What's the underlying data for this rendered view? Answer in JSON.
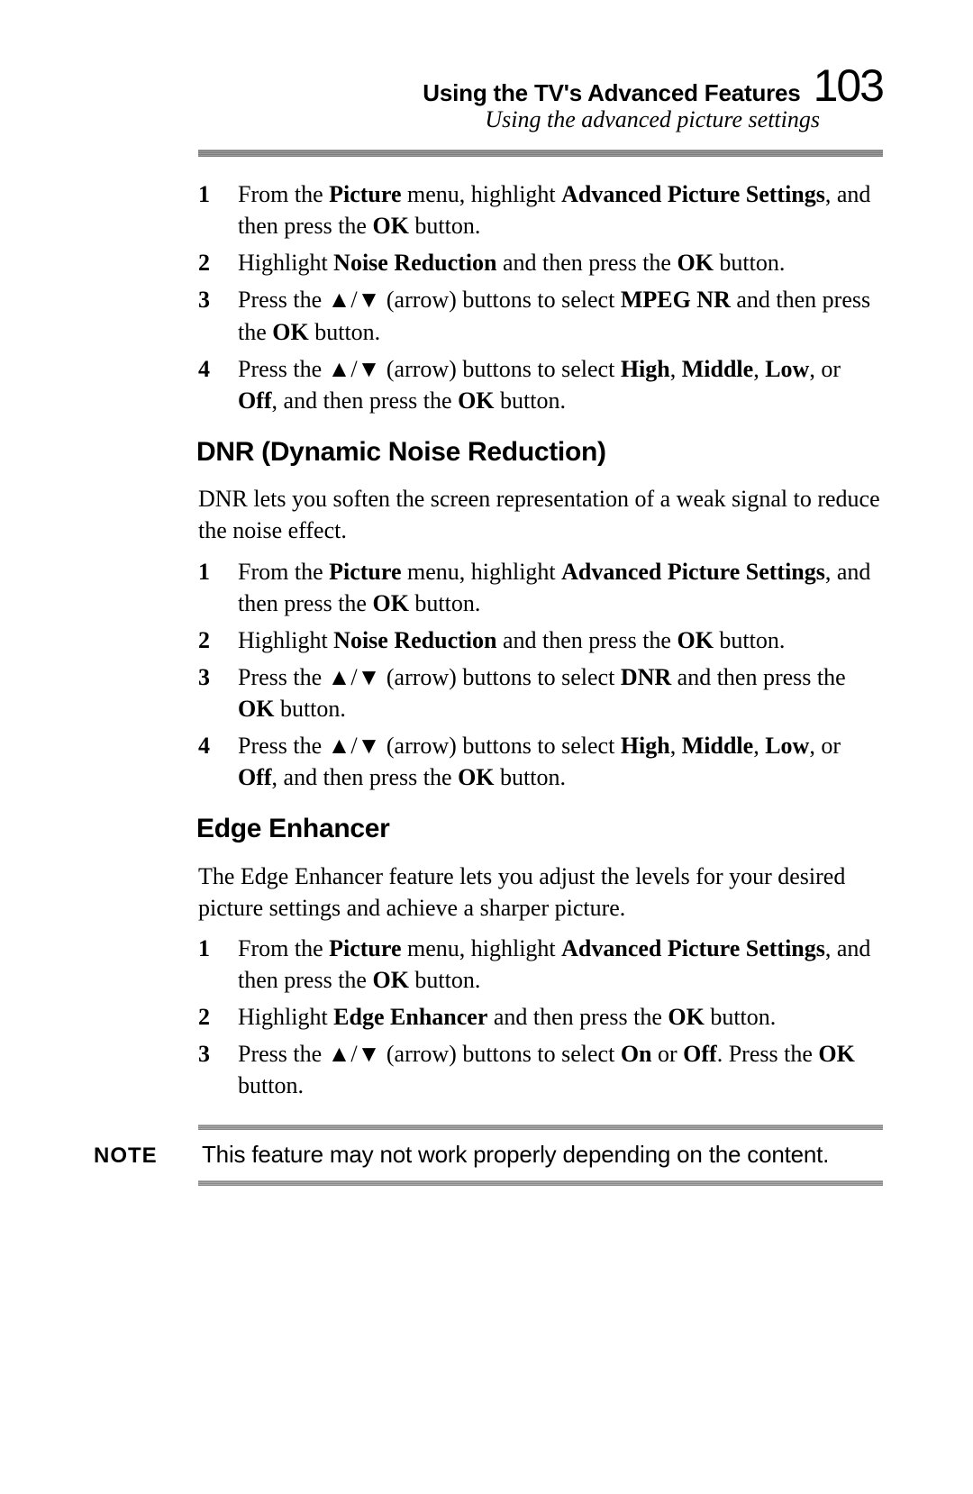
{
  "page": {
    "chapter_title": "Using the TV's Advanced Features",
    "section_subtitle": "Using the advanced picture settings",
    "number": "103"
  },
  "colors": {
    "text": "#000000",
    "background": "#ffffff",
    "rule": "#8a8a8a"
  },
  "typography": {
    "body_font": "Times New Roman",
    "body_size_pt": 12,
    "heading_font": "Arial Narrow",
    "heading_size_pt": 14,
    "page_number_size_pt": 28,
    "note_label_font": "Arial",
    "note_text_font": "Arial Narrow"
  },
  "glyphs": {
    "up_arrow": "▲",
    "down_arrow": "▼",
    "arrow_separator": "/"
  },
  "steps_top": [
    {
      "n": "1",
      "segments": [
        {
          "t": "From the "
        },
        {
          "t": "Picture",
          "b": true
        },
        {
          "t": " menu, highlight "
        },
        {
          "t": "Advanced Picture Settings",
          "b": true
        },
        {
          "t": ", and then press the "
        },
        {
          "t": "OK",
          "b": true
        },
        {
          "t": " button."
        }
      ]
    },
    {
      "n": "2",
      "segments": [
        {
          "t": " Highlight "
        },
        {
          "t": "Noise Reduction",
          "b": true
        },
        {
          "t": " and then press the "
        },
        {
          "t": "OK",
          "b": true
        },
        {
          "t": " button."
        }
      ]
    },
    {
      "n": "3",
      "segments": [
        {
          "t": "Press the "
        },
        {
          "arrows": true
        },
        {
          "t": " (arrow) buttons to select "
        },
        {
          "t": "MPEG NR",
          "b": true
        },
        {
          "t": " and then press the "
        },
        {
          "t": "OK",
          "b": true
        },
        {
          "t": " button."
        }
      ]
    },
    {
      "n": "4",
      "segments": [
        {
          "t": "Press the "
        },
        {
          "arrows": true
        },
        {
          "t": " (arrow) buttons to select "
        },
        {
          "t": "High",
          "b": true
        },
        {
          "t": ", "
        },
        {
          "t": "Middle",
          "b": true
        },
        {
          "t": ", "
        },
        {
          "t": "Low",
          "b": true
        },
        {
          "t": ", or "
        },
        {
          "t": "Off",
          "b": true
        },
        {
          "t": ", and then press the "
        },
        {
          "t": "OK",
          "b": true
        },
        {
          "t": " button."
        }
      ]
    }
  ],
  "dnr": {
    "heading": "DNR (Dynamic Noise Reduction)",
    "intro": "DNR lets you soften the screen representation of a weak signal to reduce the noise effect.",
    "steps": [
      {
        "n": "1",
        "segments": [
          {
            "t": "From the "
          },
          {
            "t": "Picture",
            "b": true
          },
          {
            "t": " menu, highlight "
          },
          {
            "t": "Advanced Picture Settings",
            "b": true
          },
          {
            "t": ", and then press the "
          },
          {
            "t": "OK",
            "b": true
          },
          {
            "t": " button."
          }
        ]
      },
      {
        "n": "2",
        "segments": [
          {
            "t": "Highlight "
          },
          {
            "t": "Noise Reduction",
            "b": true
          },
          {
            "t": " and then press the "
          },
          {
            "t": "OK",
            "b": true
          },
          {
            "t": " button."
          }
        ]
      },
      {
        "n": "3",
        "segments": [
          {
            "t": "Press the "
          },
          {
            "arrows": true
          },
          {
            "t": " (arrow)  buttons to select "
          },
          {
            "t": "DNR",
            "b": true
          },
          {
            "t": " and then press the "
          },
          {
            "t": "OK",
            "b": true
          },
          {
            "t": " button."
          }
        ]
      },
      {
        "n": "4",
        "segments": [
          {
            "t": "Press the "
          },
          {
            "arrows": true
          },
          {
            "t": " (arrow) buttons to select "
          },
          {
            "t": "High",
            "b": true
          },
          {
            "t": ", "
          },
          {
            "t": "Middle",
            "b": true
          },
          {
            "t": ", "
          },
          {
            "t": "Low",
            "b": true
          },
          {
            "t": ", or "
          },
          {
            "t": "Off",
            "b": true
          },
          {
            "t": ", and then press the "
          },
          {
            "t": "OK",
            "b": true
          },
          {
            "t": " button."
          }
        ]
      }
    ]
  },
  "edge": {
    "heading": "Edge Enhancer",
    "intro": "The Edge Enhancer feature lets you adjust the levels for your desired picture settings and achieve a sharper picture.",
    "steps": [
      {
        "n": "1",
        "segments": [
          {
            "t": "From the "
          },
          {
            "t": "Picture",
            "b": true
          },
          {
            "t": " menu, highlight "
          },
          {
            "t": "Advanced Picture Settings",
            "b": true
          },
          {
            "t": ", and then press the "
          },
          {
            "t": "OK",
            "b": true
          },
          {
            "t": " button."
          }
        ]
      },
      {
        "n": "2",
        "segments": [
          {
            "t": "Highlight "
          },
          {
            "t": "Edge Enhancer",
            "b": true
          },
          {
            "t": " and then press the "
          },
          {
            "t": "OK",
            "b": true
          },
          {
            "t": " button."
          }
        ]
      },
      {
        "n": "3",
        "segments": [
          {
            "t": "Press the "
          },
          {
            "arrows": true
          },
          {
            "t": " (arrow) buttons to select "
          },
          {
            "t": "On",
            "b": true
          },
          {
            "t": " or "
          },
          {
            "t": "Off",
            "b": true
          },
          {
            "t": ". Press the "
          },
          {
            "t": "OK",
            "b": true
          },
          {
            "t": " button."
          }
        ]
      }
    ]
  },
  "note": {
    "label": "NOTE",
    "text": "This feature may not work properly depending on the content."
  }
}
